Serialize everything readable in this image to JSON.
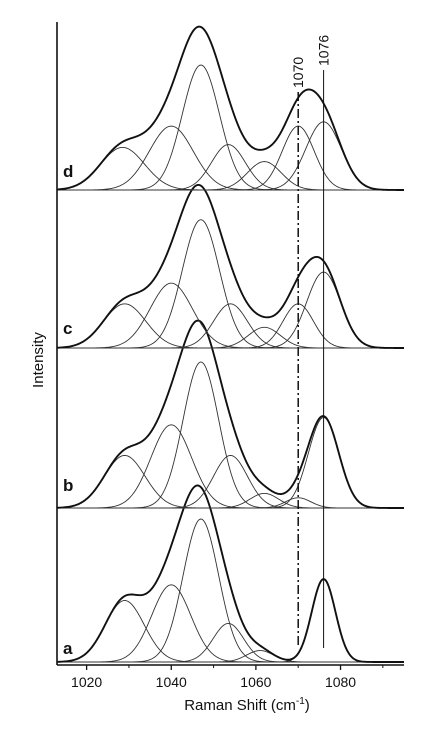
{
  "chart_data": {
    "type": "line",
    "xlabel": "Raman Shift (cm",
    "xlabel_sup": "-1",
    "xlabel_close": ")",
    "ylabel": "Intensity",
    "xlim": [
      1013,
      1095
    ],
    "xticks": [
      1020,
      1040,
      1060,
      1080
    ],
    "x_tick_labels": [
      "1020",
      "1040",
      "1060",
      "1080"
    ],
    "reference_lines": [
      {
        "x": 1070,
        "label": "1070",
        "style": "dash-dot"
      },
      {
        "x": 1076,
        "label": "1076",
        "style": "solid"
      }
    ],
    "panels": [
      {
        "label": "a",
        "baseline": 0.0,
        "components": [
          {
            "center": 1029,
            "height": 0.43,
            "width": 4.6
          },
          {
            "center": 1040,
            "height": 0.54,
            "width": 4.6
          },
          {
            "center": 1047,
            "height": 1.0,
            "width": 4.2
          },
          {
            "center": 1053.5,
            "height": 0.27,
            "width": 3.6
          },
          {
            "center": 1061,
            "height": 0.08,
            "width": 3.2
          },
          {
            "center": 1076,
            "height": 0.58,
            "width": 2.8
          }
        ]
      },
      {
        "label": "b",
        "baseline": 0.0,
        "components": [
          {
            "center": 1029,
            "height": 0.36,
            "width": 4.8
          },
          {
            "center": 1040,
            "height": 0.57,
            "width": 4.8
          },
          {
            "center": 1047,
            "height": 1.0,
            "width": 4.2
          },
          {
            "center": 1054,
            "height": 0.36,
            "width": 4.0
          },
          {
            "center": 1062,
            "height": 0.1,
            "width": 3.4
          },
          {
            "center": 1070,
            "height": 0.07,
            "width": 3.0
          },
          {
            "center": 1076,
            "height": 0.62,
            "width": 3.6
          }
        ]
      },
      {
        "label": "c",
        "baseline": 0.0,
        "components": [
          {
            "center": 1029,
            "height": 0.32,
            "width": 5.0
          },
          {
            "center": 1040,
            "height": 0.47,
            "width": 5.0
          },
          {
            "center": 1047,
            "height": 0.93,
            "width": 4.4
          },
          {
            "center": 1054,
            "height": 0.32,
            "width": 4.0
          },
          {
            "center": 1062,
            "height": 0.15,
            "width": 3.8
          },
          {
            "center": 1070,
            "height": 0.32,
            "width": 3.6
          },
          {
            "center": 1076,
            "height": 0.55,
            "width": 4.0
          }
        ]
      },
      {
        "label": "d",
        "baseline": 0.0,
        "components": [
          {
            "center": 1028.5,
            "height": 0.3,
            "width": 5.2
          },
          {
            "center": 1040,
            "height": 0.45,
            "width": 5.2
          },
          {
            "center": 1047,
            "height": 0.88,
            "width": 4.4
          },
          {
            "center": 1053.5,
            "height": 0.32,
            "width": 4.0
          },
          {
            "center": 1062,
            "height": 0.2,
            "width": 4.0
          },
          {
            "center": 1070,
            "height": 0.45,
            "width": 3.8
          },
          {
            "center": 1076,
            "height": 0.48,
            "width": 4.2
          }
        ]
      }
    ]
  }
}
